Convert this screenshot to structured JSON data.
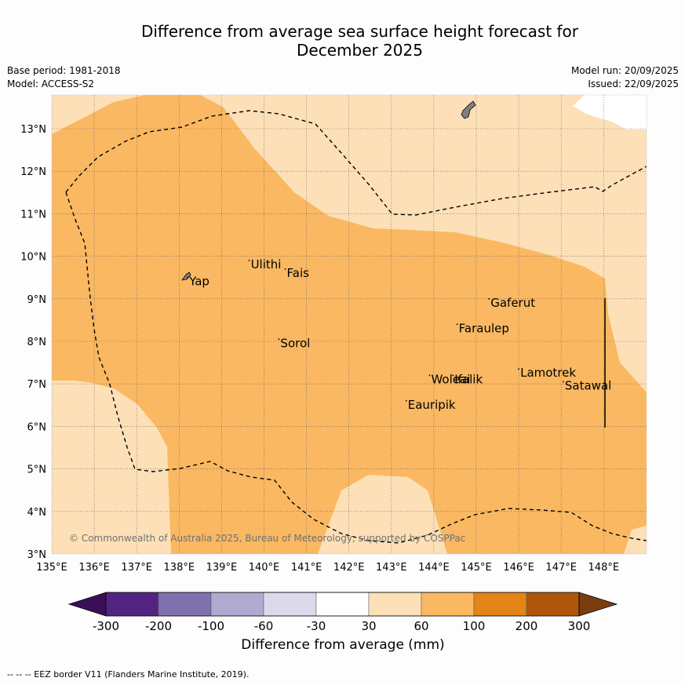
{
  "title_line1": "Difference from average sea surface height forecast for",
  "title_line2": "December 2025",
  "base_period": "Base period: 1981-2018",
  "model": "Model: ACCESS-S2",
  "model_run": "Model run: 20/09/2025",
  "issued": "Issued: 22/09/2025",
  "copyright": "© Commonwealth of Australia 2025, Bureau of Meteorology, supported by COSPPac",
  "footer": "--  --  -- EEZ border V11 (Flanders Marine Institute, 2019).",
  "colorbar_label": "Difference from average (mm)",
  "colors": {
    "light_orange": "#fde0b7",
    "mid_orange": "#fab862",
    "land": "#7f7f7f",
    "grid": "#555555"
  },
  "map": {
    "lon_ticks": [
      "135°E",
      "136°E",
      "137°E",
      "138°E",
      "139°E",
      "140°E",
      "141°E",
      "142°E",
      "143°E",
      "144°E",
      "145°E",
      "146°E",
      "147°E",
      "148°E"
    ],
    "lat_ticks": [
      "3°N",
      "4°N",
      "5°N",
      "6°N",
      "7°N",
      "8°N",
      "9°N",
      "10°N",
      "11°N",
      "12°N",
      "13°N"
    ],
    "places": [
      {
        "name": "Yap",
        "lon": 138.2,
        "lat": 9.5
      },
      {
        "name": "Ulithi",
        "lon": 139.65,
        "lat": 9.9
      },
      {
        "name": "Fais",
        "lon": 140.5,
        "lat": 9.7
      },
      {
        "name": "Sorol",
        "lon": 140.35,
        "lat": 8.05
      },
      {
        "name": "Gaferut",
        "lon": 145.3,
        "lat": 9.0
      },
      {
        "name": "Faraulep",
        "lon": 144.55,
        "lat": 8.4
      },
      {
        "name": "Woleai",
        "lon": 143.9,
        "lat": 7.2
      },
      {
        "name": "Ifalik",
        "lon": 144.45,
        "lat": 7.2
      },
      {
        "name": "Lamotrek",
        "lon": 146.0,
        "lat": 7.35
      },
      {
        "name": "Satawal",
        "lon": 147.05,
        "lat": 7.05
      },
      {
        "name": "Eauripik",
        "lon": 143.35,
        "lat": 6.6
      }
    ]
  },
  "colorbar": {
    "ticks": [
      "-300",
      "-200",
      "-100",
      "-60",
      "-30",
      "30",
      "60",
      "100",
      "200",
      "300"
    ],
    "colors": [
      "#3b0f57",
      "#532382",
      "#7f71ae",
      "#b0a9d0",
      "#dbd9ec",
      "#ffffff",
      "#fde0b7",
      "#fab862",
      "#e38417",
      "#ae570a",
      "#7a3d10"
    ]
  }
}
